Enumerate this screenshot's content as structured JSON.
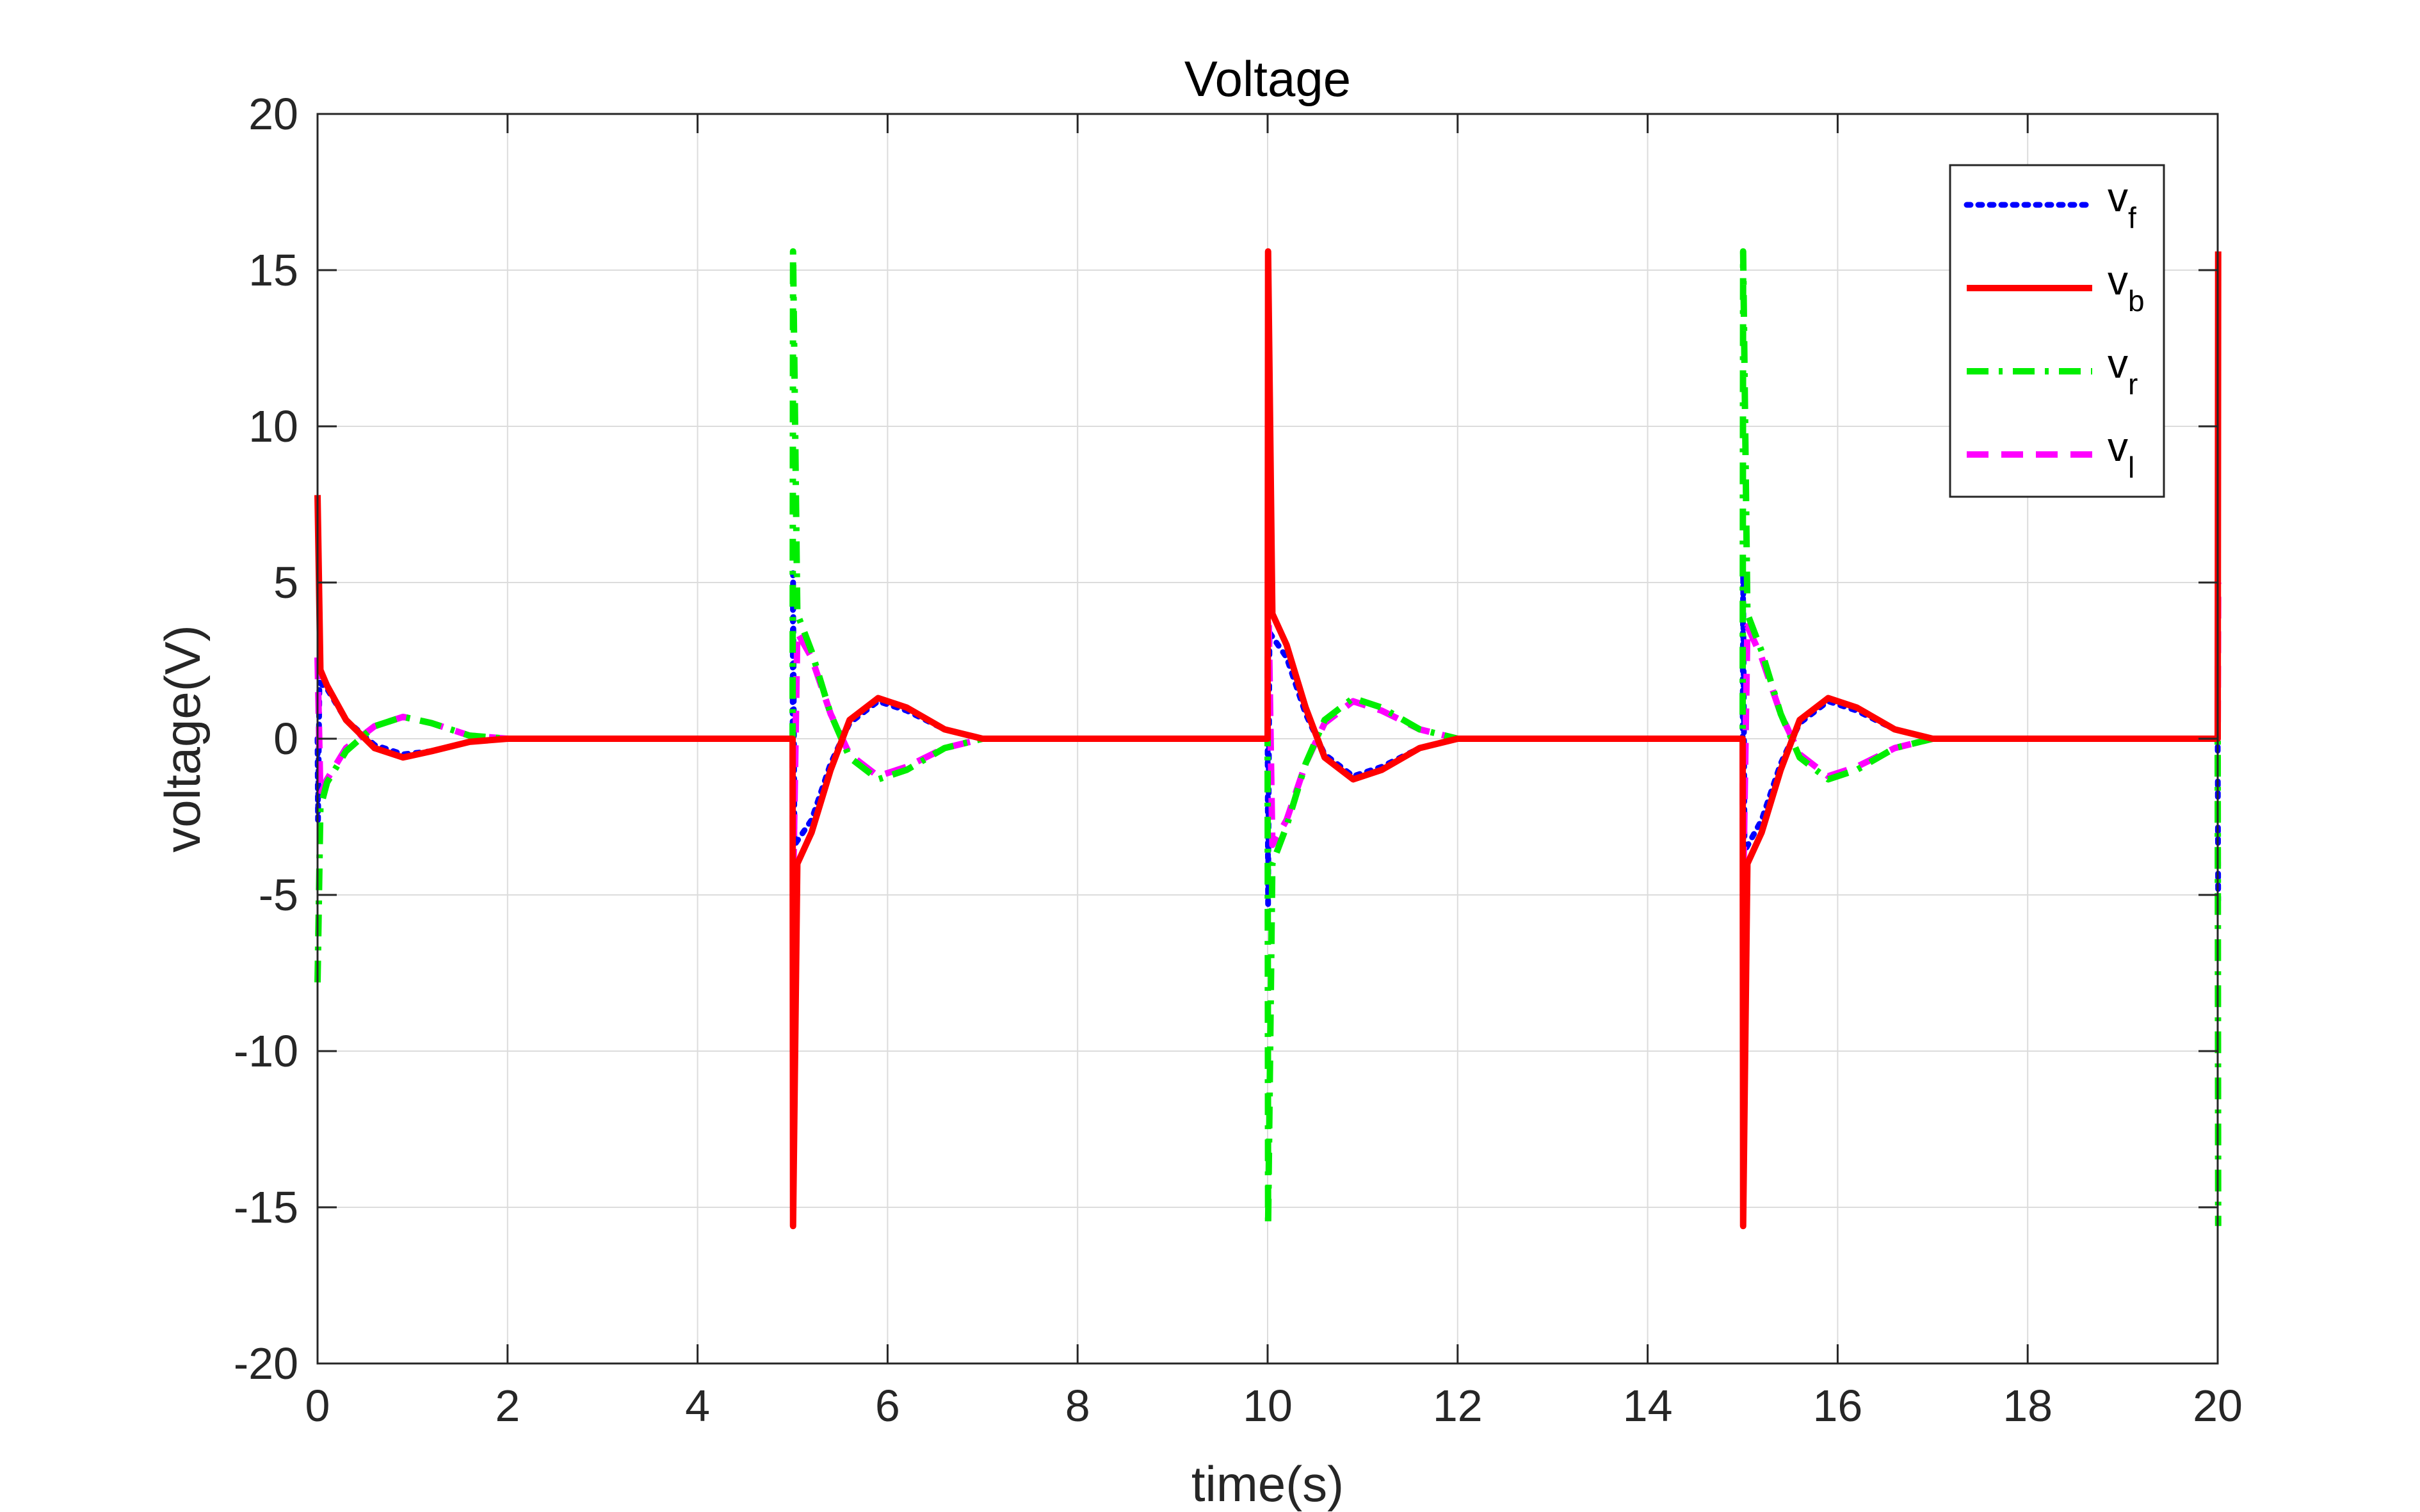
{
  "chart_data": {
    "type": "line",
    "title": "Voltage",
    "xlabel": "time(s)",
    "ylabel": "voltage(V)",
    "xlim": [
      0,
      20
    ],
    "ylim": [
      -20,
      20
    ],
    "xticks": [
      0,
      2,
      4,
      6,
      8,
      10,
      12,
      14,
      16,
      18,
      20
    ],
    "yticks": [
      -20,
      -15,
      -10,
      -5,
      0,
      5,
      10,
      15,
      20
    ],
    "grid": true,
    "legend_position": "top-right",
    "series": [
      {
        "name": "v",
        "subscript": "f",
        "color": "#0000ff",
        "style": "dotted",
        "points": [
          [
            0,
            0
          ],
          [
            0.005,
            -2.6
          ],
          [
            0.02,
            1.8
          ],
          [
            0.1,
            1.6
          ],
          [
            0.3,
            0.6
          ],
          [
            0.6,
            -0.2
          ],
          [
            0.9,
            -0.5
          ],
          [
            1.2,
            -0.4
          ],
          [
            1.6,
            -0.1
          ],
          [
            2.0,
            0
          ],
          [
            5.0,
            0
          ],
          [
            5.005,
            5.3
          ],
          [
            5.02,
            -3.4
          ],
          [
            5.2,
            -2.6
          ],
          [
            5.4,
            -0.8
          ],
          [
            5.6,
            0.5
          ],
          [
            5.9,
            1.2
          ],
          [
            6.2,
            0.9
          ],
          [
            6.6,
            0.3
          ],
          [
            7.0,
            0
          ],
          [
            10.0,
            0
          ],
          [
            10.005,
            -5.3
          ],
          [
            10.02,
            3.4
          ],
          [
            10.2,
            2.6
          ],
          [
            10.4,
            0.8
          ],
          [
            10.6,
            -0.5
          ],
          [
            10.9,
            -1.2
          ],
          [
            11.2,
            -0.9
          ],
          [
            11.6,
            -0.3
          ],
          [
            12.0,
            0
          ],
          [
            15.0,
            0
          ],
          [
            15.005,
            5.3
          ],
          [
            15.02,
            -3.6
          ],
          [
            15.2,
            -2.6
          ],
          [
            15.4,
            -0.8
          ],
          [
            15.6,
            0.5
          ],
          [
            15.9,
            1.2
          ],
          [
            16.2,
            0.9
          ],
          [
            16.6,
            0.3
          ],
          [
            17.0,
            0
          ],
          [
            20.0,
            0
          ],
          [
            20.005,
            -5.3
          ]
        ]
      },
      {
        "name": "v",
        "subscript": "b",
        "color": "#ff0000",
        "style": "solid",
        "points": [
          [
            0,
            7.8
          ],
          [
            0.03,
            2.2
          ],
          [
            0.1,
            1.7
          ],
          [
            0.3,
            0.6
          ],
          [
            0.6,
            -0.3
          ],
          [
            0.9,
            -0.6
          ],
          [
            1.2,
            -0.4
          ],
          [
            1.6,
            -0.1
          ],
          [
            2.0,
            0
          ],
          [
            5.0,
            0
          ],
          [
            5.005,
            -15.6
          ],
          [
            5.05,
            -4.0
          ],
          [
            5.2,
            -3.0
          ],
          [
            5.4,
            -1.0
          ],
          [
            5.6,
            0.6
          ],
          [
            5.9,
            1.3
          ],
          [
            6.2,
            1.0
          ],
          [
            6.6,
            0.3
          ],
          [
            7.0,
            0
          ],
          [
            10.0,
            0
          ],
          [
            10.005,
            15.6
          ],
          [
            10.05,
            4.0
          ],
          [
            10.2,
            3.0
          ],
          [
            10.4,
            1.0
          ],
          [
            10.6,
            -0.6
          ],
          [
            10.9,
            -1.3
          ],
          [
            11.2,
            -1.0
          ],
          [
            11.6,
            -0.3
          ],
          [
            12.0,
            0
          ],
          [
            15.0,
            0
          ],
          [
            15.005,
            -15.6
          ],
          [
            15.05,
            -4.0
          ],
          [
            15.2,
            -3.0
          ],
          [
            15.4,
            -1.0
          ],
          [
            15.6,
            0.6
          ],
          [
            15.9,
            1.3
          ],
          [
            16.2,
            1.0
          ],
          [
            16.6,
            0.3
          ],
          [
            17.0,
            0
          ],
          [
            20.0,
            0
          ],
          [
            20.005,
            15.6
          ]
        ]
      },
      {
        "name": "v",
        "subscript": "r",
        "color": "#00ee00",
        "style": "dashdot",
        "points": [
          [
            0,
            -7.8
          ],
          [
            0.03,
            -2.2
          ],
          [
            0.1,
            -1.4
          ],
          [
            0.3,
            -0.4
          ],
          [
            0.6,
            0.4
          ],
          [
            0.9,
            0.7
          ],
          [
            1.2,
            0.5
          ],
          [
            1.6,
            0.1
          ],
          [
            2.0,
            0
          ],
          [
            5.0,
            0
          ],
          [
            5.005,
            15.6
          ],
          [
            5.05,
            4.0
          ],
          [
            5.2,
            2.8
          ],
          [
            5.4,
            0.8
          ],
          [
            5.6,
            -0.6
          ],
          [
            5.9,
            -1.3
          ],
          [
            6.2,
            -1.0
          ],
          [
            6.6,
            -0.3
          ],
          [
            7.0,
            0
          ],
          [
            10.0,
            0
          ],
          [
            10.005,
            -15.6
          ],
          [
            10.05,
            -4.0
          ],
          [
            10.2,
            -2.8
          ],
          [
            10.4,
            -0.8
          ],
          [
            10.6,
            0.6
          ],
          [
            10.9,
            1.3
          ],
          [
            11.2,
            1.0
          ],
          [
            11.6,
            0.3
          ],
          [
            12.0,
            0
          ],
          [
            15.0,
            0
          ],
          [
            15.005,
            15.6
          ],
          [
            15.05,
            4.0
          ],
          [
            15.2,
            2.8
          ],
          [
            15.4,
            0.8
          ],
          [
            15.6,
            -0.6
          ],
          [
            15.9,
            -1.3
          ],
          [
            16.2,
            -1.0
          ],
          [
            16.6,
            -0.3
          ],
          [
            17.0,
            0
          ],
          [
            20.0,
            0
          ],
          [
            20.005,
            -15.6
          ]
        ]
      },
      {
        "name": "v",
        "subscript": "l",
        "color": "#ff00ff",
        "style": "dashed",
        "points": [
          [
            0,
            2.6
          ],
          [
            0.03,
            -1.8
          ],
          [
            0.1,
            -1.3
          ],
          [
            0.3,
            -0.3
          ],
          [
            0.6,
            0.4
          ],
          [
            0.9,
            0.7
          ],
          [
            1.2,
            0.5
          ],
          [
            1.6,
            0.1
          ],
          [
            2.0,
            0
          ],
          [
            5.0,
            0
          ],
          [
            5.005,
            -5.0
          ],
          [
            5.05,
            3.4
          ],
          [
            5.2,
            2.6
          ],
          [
            5.4,
            0.8
          ],
          [
            5.6,
            -0.5
          ],
          [
            5.9,
            -1.2
          ],
          [
            6.2,
            -0.9
          ],
          [
            6.6,
            -0.3
          ],
          [
            7.0,
            0
          ],
          [
            10.0,
            0
          ],
          [
            10.005,
            5.0
          ],
          [
            10.05,
            -3.4
          ],
          [
            10.2,
            -2.6
          ],
          [
            10.4,
            -0.8
          ],
          [
            10.6,
            0.5
          ],
          [
            10.9,
            1.2
          ],
          [
            11.2,
            0.9
          ],
          [
            11.6,
            0.3
          ],
          [
            12.0,
            0
          ],
          [
            15.0,
            0
          ],
          [
            15.005,
            -5.0
          ],
          [
            15.05,
            3.6
          ],
          [
            15.2,
            2.6
          ],
          [
            15.4,
            0.8
          ],
          [
            15.6,
            -0.5
          ],
          [
            15.9,
            -1.2
          ],
          [
            16.2,
            -0.9
          ],
          [
            16.6,
            -0.3
          ],
          [
            17.0,
            0
          ],
          [
            20.0,
            0
          ],
          [
            20.005,
            5.0
          ]
        ]
      }
    ]
  }
}
